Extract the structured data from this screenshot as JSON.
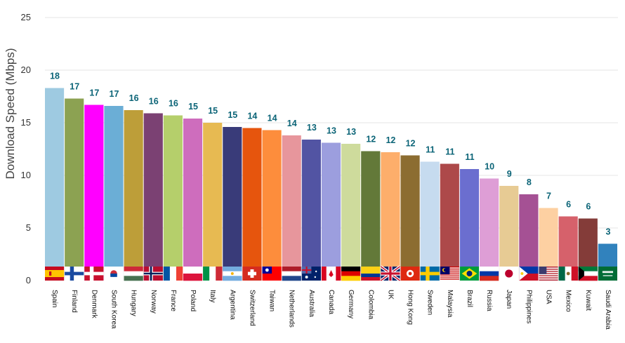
{
  "chart_data": {
    "type": "bar",
    "title": "",
    "xlabel": "",
    "ylabel": "Download Speed (Mbps)",
    "ylim": [
      0,
      25
    ],
    "yticks": [
      0,
      5,
      10,
      15,
      20,
      25
    ],
    "grid": true,
    "legend": "none",
    "categories": [
      "Spain",
      "Finland",
      "Denmark",
      "South Korea",
      "Hungary",
      "Norway",
      "France",
      "Poland",
      "Italy",
      "Argentina",
      "Switzerland",
      "Taiwan",
      "Netherlands",
      "Australia",
      "Canada",
      "Germany",
      "Colombia",
      "UK",
      "Hong Kong",
      "Sweden",
      "Malaysia",
      "Brazil",
      "Russia",
      "Japan",
      "Philippines",
      "USA",
      "Mexico",
      "Kuwait",
      "Saudi Arabia"
    ],
    "values": [
      18.3,
      17.3,
      16.7,
      16.6,
      16.2,
      15.9,
      15.7,
      15.4,
      15.0,
      14.6,
      14.5,
      14.3,
      13.8,
      13.4,
      13.1,
      13.0,
      12.3,
      12.2,
      11.9,
      11.3,
      11.1,
      10.6,
      9.7,
      9.0,
      8.2,
      6.9,
      6.1,
      5.9,
      3.5
    ],
    "labels": [
      "18",
      "17",
      "17",
      "17",
      "16",
      "16",
      "16",
      "15",
      "15",
      "15",
      "14",
      "14",
      "14",
      "13",
      "13",
      "13",
      "12",
      "12",
      "12",
      "11",
      "11",
      "11",
      "10",
      "9",
      "8",
      "7",
      "6",
      "6",
      "3"
    ],
    "colors": [
      "#9ecae1",
      "#8ca252",
      "#ff00ff",
      "#6baed6",
      "#bd9e39",
      "#7b4173",
      "#b5cf6b",
      "#ce6dbd",
      "#e7ba52",
      "#393b79",
      "#e6550d",
      "#fd8d3c",
      "#e7969c",
      "#5254a3",
      "#9c9ede",
      "#cedb9c",
      "#637939",
      "#fdae6b",
      "#8c6d31",
      "#c6dbef",
      "#ad494a",
      "#6b6ecf",
      "#de9ed6",
      "#e7cb94",
      "#a55194",
      "#fdd0a2",
      "#d6616b",
      "#843c39",
      "#3182bd"
    ],
    "flags": [
      "spain-flag",
      "finland-flag",
      "denmark-flag",
      "south-korea-flag",
      "hungary-flag",
      "norway-flag",
      "france-flag",
      "poland-flag",
      "italy-flag",
      "argentina-flag",
      "switzerland-flag",
      "taiwan-flag",
      "netherlands-flag",
      "australia-flag",
      "canada-flag",
      "germany-flag",
      "colombia-flag",
      "uk-flag",
      "hong-kong-flag",
      "sweden-flag",
      "malaysia-flag",
      "brazil-flag",
      "russia-flag",
      "japan-flag",
      "philippines-flag",
      "usa-flag",
      "mexico-flag",
      "kuwait-flag",
      "saudi-arabia-flag"
    ]
  }
}
